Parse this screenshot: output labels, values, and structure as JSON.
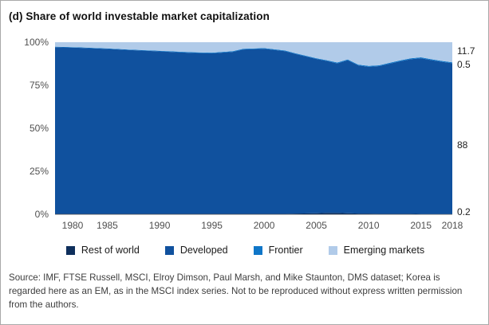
{
  "figure": {
    "title": "(d) Share of world investable market capitalization"
  },
  "chart_data": {
    "type": "area",
    "stacked": true,
    "title": "(d) Share of world investable market capitalization",
    "xlabel": "",
    "ylabel": "",
    "ylim": [
      0,
      100
    ],
    "grid": false,
    "legend_position": "bottom",
    "y_ticks": [
      "100%",
      "75%",
      "50%",
      "25%",
      "0%"
    ],
    "x_ticks": [
      1980,
      1985,
      1990,
      1995,
      2000,
      2005,
      2010,
      2015,
      2018
    ],
    "x": [
      1980,
      1982,
      1985,
      1987,
      1990,
      1993,
      1995,
      1997,
      1998,
      2000,
      2002,
      2003,
      2005,
      2006,
      2007,
      2008,
      2009,
      2010,
      2011,
      2012,
      2013,
      2014,
      2015,
      2016,
      2017,
      2018
    ],
    "series": [
      {
        "name": "Rest of world",
        "color": "#0e2f5c",
        "values": [
          0.3,
          0.3,
          0.3,
          0.3,
          0.3,
          0.3,
          0.3,
          0.3,
          0.3,
          0.3,
          0.3,
          0.4,
          0.6,
          0.8,
          0.8,
          0.6,
          0.4,
          0.4,
          0.3,
          0.3,
          0.3,
          0.3,
          0.2,
          0.2,
          0.2,
          0.2
        ]
      },
      {
        "name": "Developed",
        "color": "#10519e",
        "values": [
          96.8,
          96.5,
          95.8,
          95.2,
          94.4,
          93.5,
          93.2,
          94.1,
          95.5,
          95.9,
          94.5,
          92.8,
          89.7,
          88.3,
          86.9,
          88.9,
          86.1,
          85.3,
          85.8,
          87.2,
          88.6,
          89.8,
          90.5,
          89.4,
          88.4,
          87.6
        ]
      },
      {
        "name": "Frontier",
        "color": "#0f76c8",
        "values": [
          0.3,
          0.3,
          0.3,
          0.3,
          0.3,
          0.4,
          0.4,
          0.4,
          0.4,
          0.4,
          0.4,
          0.4,
          0.4,
          0.4,
          0.5,
          0.5,
          0.5,
          0.5,
          0.5,
          0.5,
          0.5,
          0.5,
          0.5,
          0.5,
          0.5,
          0.5
        ]
      },
      {
        "name": "Emerging markets",
        "color": "#b1cbe9",
        "values": [
          2.6,
          2.9,
          3.6,
          4.2,
          5.0,
          5.8,
          6.1,
          5.2,
          3.8,
          3.4,
          4.8,
          6.4,
          9.3,
          10.5,
          11.8,
          10.0,
          13.0,
          13.8,
          13.4,
          12.0,
          10.6,
          9.4,
          8.8,
          9.9,
          10.9,
          11.7
        ]
      }
    ],
    "end_value_labels": [
      "11.7",
      "0.5",
      "88",
      "0.2"
    ]
  },
  "legend": {
    "items": [
      {
        "label": "Rest of world",
        "color": "#0e2f5c"
      },
      {
        "label": "Developed",
        "color": "#10519e"
      },
      {
        "label": "Frontier",
        "color": "#0f76c8"
      },
      {
        "label": "Emerging markets",
        "color": "#b1cbe9"
      }
    ]
  },
  "source_note": "Source: IMF, FTSE Russell, MSCI, Elroy Dimson, Paul Marsh, and Mike Staunton, DMS dataset; Korea is regarded here as an EM, as in the MSCI index series. Not to be reproduced without express written permission from the authors."
}
